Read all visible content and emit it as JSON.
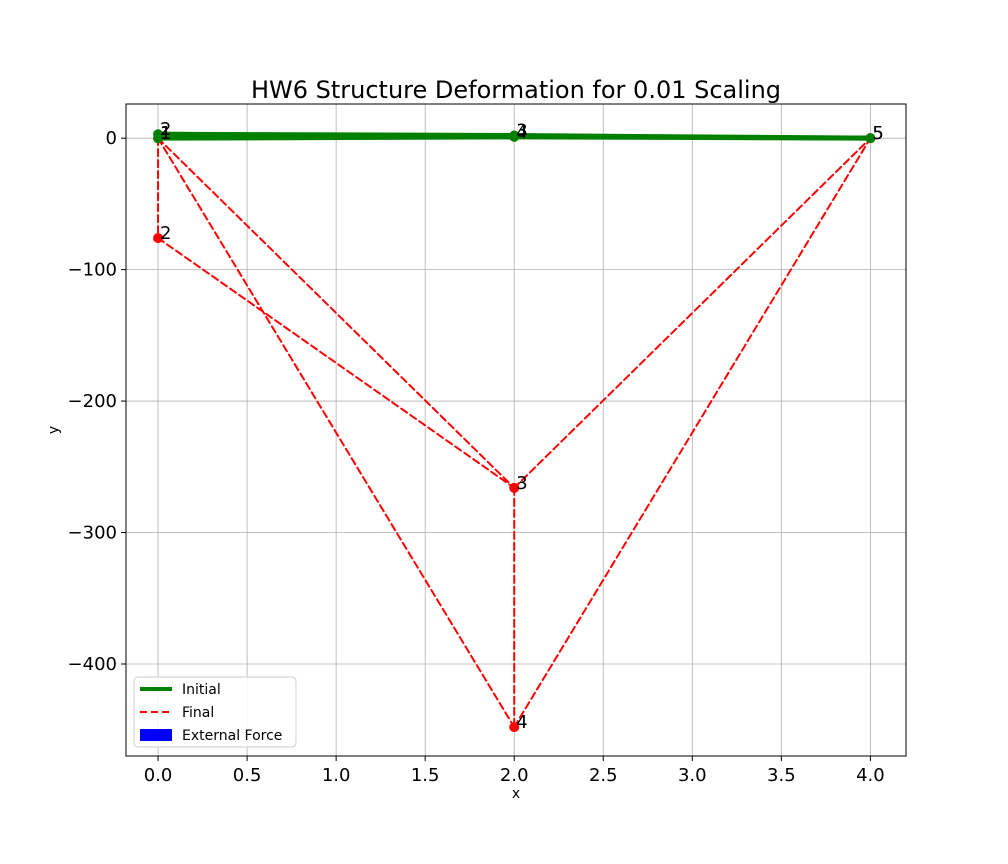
{
  "chart_data": {
    "type": "line",
    "title": "HW6 Structure Deformation for 0.01 Scaling",
    "xlabel": "x",
    "ylabel": "y",
    "xlim": [
      -0.18,
      4.2
    ],
    "ylim": [
      -470,
      26
    ],
    "xticks": [
      0.0,
      0.5,
      1.0,
      1.5,
      2.0,
      2.5,
      3.0,
      3.5,
      4.0
    ],
    "xtick_labels": [
      "0.0",
      "0.5",
      "1.0",
      "1.5",
      "2.0",
      "2.5",
      "3.0",
      "3.5",
      "4.0"
    ],
    "yticks": [
      0,
      -100,
      -200,
      -300,
      -400
    ],
    "ytick_labels": [
      "0",
      "−100",
      "−200",
      "−300",
      "−400"
    ],
    "grid": true,
    "legend": {
      "position": "lower-left",
      "entries": [
        {
          "label": "Initial",
          "color": "#008000",
          "style": "solid"
        },
        {
          "label": "Final",
          "color": "#ff0000",
          "style": "dashed"
        },
        {
          "label": "External Force",
          "color": "#0000ff",
          "style": "patch"
        }
      ]
    },
    "series": [
      {
        "name": "Initial",
        "color": "#008000",
        "nodes": [
          {
            "id": "1",
            "x": 0.0,
            "y": 0
          },
          {
            "id": "2",
            "x": 0.0,
            "y": 3
          },
          {
            "id": "3",
            "x": 2.0,
            "y": 2
          },
          {
            "id": "4",
            "x": 2.0,
            "y": 1
          },
          {
            "id": "5",
            "x": 4.0,
            "y": 0
          }
        ],
        "members": [
          [
            0,
            1
          ],
          [
            1,
            2
          ],
          [
            0,
            3
          ],
          [
            1,
            3
          ],
          [
            2,
            3
          ],
          [
            2,
            4
          ],
          [
            3,
            4
          ]
        ]
      },
      {
        "name": "Final",
        "color": "#ff0000",
        "nodes": [
          {
            "id": "1",
            "x": 0.0,
            "y": 0
          },
          {
            "id": "2",
            "x": 0.0,
            "y": -76
          },
          {
            "id": "3",
            "x": 2.0,
            "y": -266
          },
          {
            "id": "4",
            "x": 2.0,
            "y": -448
          },
          {
            "id": "5",
            "x": 4.0,
            "y": 0
          }
        ],
        "members": [
          [
            0,
            1
          ],
          [
            0,
            2
          ],
          [
            0,
            3
          ],
          [
            1,
            2
          ],
          [
            2,
            3
          ],
          [
            2,
            4
          ],
          [
            3,
            4
          ]
        ]
      }
    ]
  }
}
